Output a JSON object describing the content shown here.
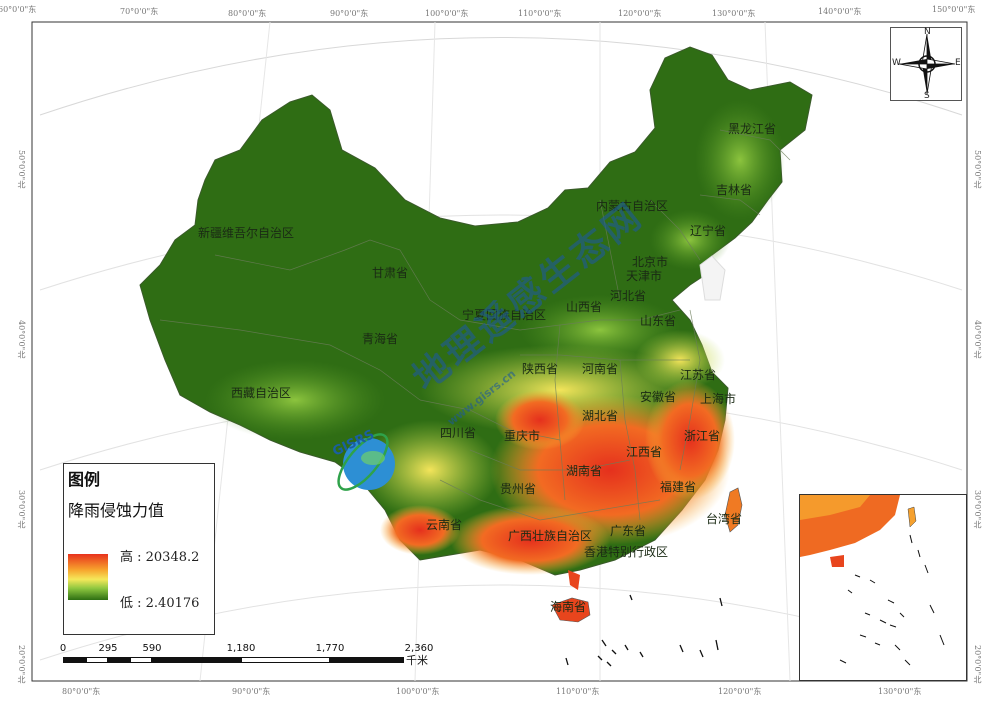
{
  "map": {
    "legend": {
      "title": "图例",
      "subtitle": "降雨侵蚀力值",
      "high_label": "高 : 20348.2",
      "low_label": "低 : 2.40176",
      "ramp_colors": [
        "#e8321c",
        "#f7a62e",
        "#f5e85a",
        "#8dc63f",
        "#2d6e12"
      ]
    },
    "scale_bar": {
      "ticks": [
        "0",
        "295",
        "590",
        "1,180",
        "1,770",
        "2,360"
      ],
      "unit": "千米"
    },
    "north_arrow": {
      "n": "N",
      "s": "S",
      "w": "W",
      "e": "E",
      "icon": "compass-rose-icon"
    },
    "coordinates": {
      "top": [
        "60°0'0\"东",
        "70°0'0\"东",
        "80°0'0\"东",
        "90°0'0\"东",
        "100°0'0\"东",
        "110°0'0\"东",
        "120°0'0\"东",
        "130°0'0\"东",
        "140°0'0\"东",
        "150°0'0\"东"
      ],
      "bottom": [
        "80°0'0\"东",
        "90°0'0\"东",
        "100°0'0\"东",
        "110°0'0\"东",
        "120°0'0\"东",
        "130°0'0\"东"
      ],
      "left": [
        "50°0'0\"北",
        "40°0'0\"北",
        "30°0'0\"北",
        "20°0'0\"北",
        "10°0'0\"北"
      ],
      "right": [
        "50°0'0\"北",
        "40°0'0\"北",
        "30°0'0\"北",
        "20°0'0\"北",
        "10°0'0\"北"
      ]
    },
    "provinces": [
      {
        "name": "黑龙江省"
      },
      {
        "name": "吉林省"
      },
      {
        "name": "辽宁省"
      },
      {
        "name": "内蒙古自治区"
      },
      {
        "name": "新疆维吾尔自治区"
      },
      {
        "name": "甘肃省"
      },
      {
        "name": "北京市"
      },
      {
        "name": "天津市"
      },
      {
        "name": "河北省"
      },
      {
        "name": "山西省"
      },
      {
        "name": "宁夏回族自治区"
      },
      {
        "name": "山东省"
      },
      {
        "name": "青海省"
      },
      {
        "name": "陕西省"
      },
      {
        "name": "河南省"
      },
      {
        "name": "江苏省"
      },
      {
        "name": "西藏自治区"
      },
      {
        "name": "安徽省"
      },
      {
        "name": "上海市"
      },
      {
        "name": "湖北省"
      },
      {
        "name": "四川省"
      },
      {
        "name": "重庆市"
      },
      {
        "name": "浙江省"
      },
      {
        "name": "江西省"
      },
      {
        "name": "湖南省"
      },
      {
        "name": "贵州省"
      },
      {
        "name": "福建省"
      },
      {
        "name": "台湾省"
      },
      {
        "name": "云南省"
      },
      {
        "name": "广西壮族自治区"
      },
      {
        "name": "广东省"
      },
      {
        "name": "香港特别行政区"
      },
      {
        "name": "海南省"
      }
    ],
    "watermark": {
      "text": "地理遥感生态网",
      "url": "www.gisrs.cn",
      "logo_text": "GISRS",
      "icon": "globe-logo-icon"
    },
    "inset": {
      "label": "south-china-sea-inset"
    }
  }
}
